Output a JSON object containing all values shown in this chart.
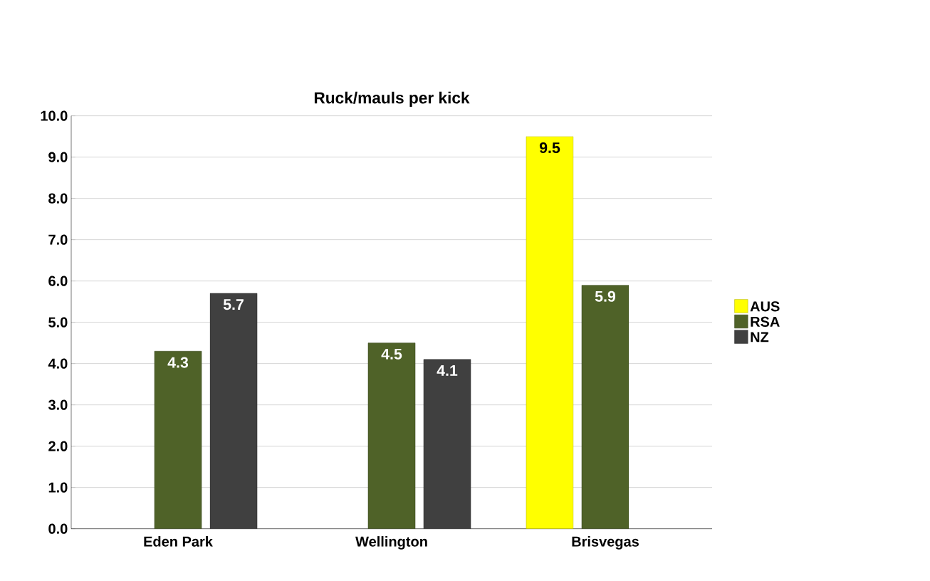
{
  "chart_data": {
    "type": "bar",
    "title": "Ruck/mauls per kick",
    "categories": [
      "Eden Park",
      "Wellington",
      "Brisvegas"
    ],
    "series": [
      {
        "name": "AUS",
        "color": "#ffff00",
        "values": [
          null,
          null,
          9.5
        ]
      },
      {
        "name": "RSA",
        "color": "#4f6228",
        "values": [
          4.3,
          4.5,
          5.9
        ]
      },
      {
        "name": "NZ",
        "color": "#404040",
        "values": [
          5.7,
          4.1,
          null
        ]
      }
    ],
    "ylim": [
      0,
      10
    ],
    "yticks": [
      {
        "value": 0,
        "label": "0.0"
      },
      {
        "value": 1,
        "label": "1.0"
      },
      {
        "value": 2,
        "label": "2.0"
      },
      {
        "value": 3,
        "label": "3.0"
      },
      {
        "value": 4,
        "label": "4.0"
      },
      {
        "value": 5,
        "label": "5.0"
      },
      {
        "value": 6,
        "label": "6.0"
      },
      {
        "value": 7,
        "label": "7.0"
      },
      {
        "value": 8,
        "label": "8.0"
      },
      {
        "value": 9,
        "label": "9.0"
      },
      {
        "value": 10,
        "label": "10.0"
      }
    ],
    "grid": "y",
    "legend": "right",
    "data_labels": true
  }
}
